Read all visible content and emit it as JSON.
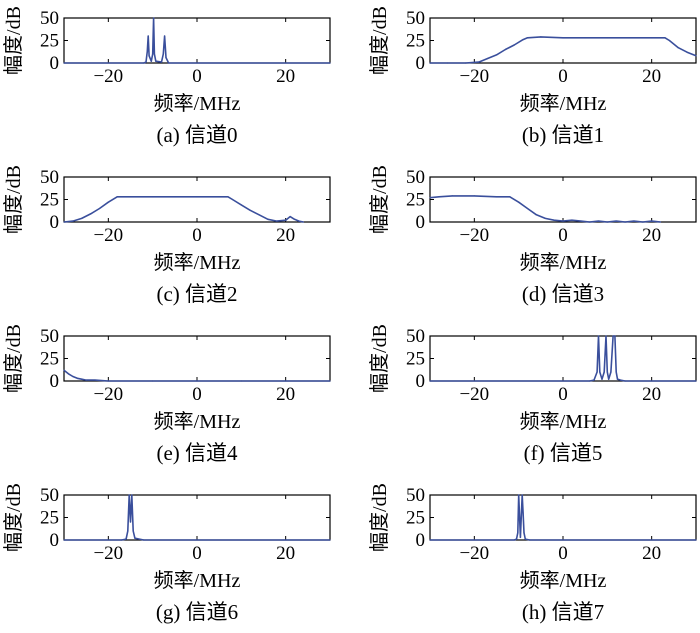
{
  "colors": {
    "line": "#3a4f9c",
    "axis": "#000000"
  },
  "chart_data": [
    {
      "caption": "(a) 信道0",
      "type": "line",
      "xlabel": "频率/MHz",
      "ylabel": "幅度/dB",
      "xlim": [
        -30,
        30
      ],
      "ylim": [
        0,
        50
      ],
      "xticks": [
        -20,
        0,
        20
      ],
      "yticks": [
        0,
        25,
        50
      ],
      "x": [
        -30,
        -12,
        -11.5,
        -11.2,
        -11,
        -10.8,
        -10.3,
        -10,
        -9.8,
        -9.6,
        -9.3,
        -8,
        -7.6,
        -7.3,
        -7,
        -6.4,
        30
      ],
      "y": [
        0,
        0,
        1,
        13,
        30,
        8,
        2,
        10,
        50,
        10,
        2,
        1,
        10,
        30,
        6,
        0,
        0
      ]
    },
    {
      "caption": "(b) 信道1",
      "type": "line",
      "xlabel": "频率/MHz",
      "ylabel": "幅度/dB",
      "xlim": [
        -30,
        30
      ],
      "ylim": [
        0,
        50
      ],
      "xticks": [
        -20,
        0,
        20
      ],
      "yticks": [
        0,
        25,
        50
      ],
      "x": [
        -30,
        -26,
        -22,
        -19,
        -17,
        -15,
        -13,
        -11,
        -9,
        -8,
        -5,
        0,
        5,
        10,
        15,
        20,
        23,
        24,
        26,
        28,
        30
      ],
      "y": [
        0,
        0,
        0,
        1,
        5,
        9,
        15,
        20,
        26,
        28,
        29,
        28,
        28,
        28,
        28,
        28,
        28,
        25,
        17,
        12,
        8
      ]
    },
    {
      "caption": "(c) 信道2",
      "type": "line",
      "xlabel": "频率/MHz",
      "ylabel": "幅度/dB",
      "xlim": [
        -30,
        30
      ],
      "ylim": [
        0,
        50
      ],
      "xticks": [
        -20,
        0,
        20
      ],
      "yticks": [
        0,
        25,
        50
      ],
      "x": [
        -30,
        -28,
        -26,
        -24,
        -22,
        -20,
        -18,
        -15,
        -10,
        -5,
        0,
        5,
        7,
        8,
        10,
        12,
        14,
        16,
        18,
        20,
        21,
        22,
        23,
        24
      ],
      "y": [
        0,
        1,
        4,
        9,
        15,
        22,
        28,
        28,
        28,
        28,
        28,
        28,
        28,
        25,
        19,
        13,
        8,
        3,
        1,
        2,
        6,
        3,
        1,
        0
      ]
    },
    {
      "caption": "(d) 信道3",
      "type": "line",
      "xlabel": "频率/MHz",
      "ylabel": "幅度/dB",
      "xlim": [
        -30,
        30
      ],
      "ylim": [
        0,
        50
      ],
      "xticks": [
        -20,
        0,
        20
      ],
      "yticks": [
        0,
        25,
        50
      ],
      "x": [
        -30,
        -28,
        -25,
        -20,
        -15,
        -12,
        -10,
        -8,
        -6,
        -4,
        -2,
        0,
        2,
        4,
        6,
        8,
        10,
        12,
        14,
        16,
        18,
        20,
        22
      ],
      "y": [
        27,
        28,
        29,
        29,
        28,
        28,
        22,
        15,
        8,
        4,
        2,
        1,
        2,
        1,
        0,
        1,
        0,
        1,
        0,
        1,
        0,
        1,
        0
      ]
    },
    {
      "caption": "(e) 信道4",
      "type": "line",
      "xlabel": "频率/MHz",
      "ylabel": "幅度/dB",
      "xlim": [
        -30,
        30
      ],
      "ylim": [
        0,
        50
      ],
      "xticks": [
        -20,
        0,
        20
      ],
      "yticks": [
        0,
        25,
        50
      ],
      "x": [
        -30,
        -29,
        -28,
        -27,
        -26,
        -25,
        -23,
        -20,
        -10,
        0,
        10,
        20,
        30
      ],
      "y": [
        12,
        8,
        5,
        3,
        2,
        1,
        1,
        0,
        0,
        0,
        0,
        0,
        0
      ]
    },
    {
      "caption": "(f) 信道5",
      "type": "line",
      "xlabel": "频率/MHz",
      "ylabel": "幅度/dB",
      "xlim": [
        -30,
        30
      ],
      "ylim": [
        0,
        50
      ],
      "xticks": [
        -20,
        0,
        20
      ],
      "yticks": [
        0,
        25,
        50
      ],
      "x": [
        -30,
        6,
        7,
        7.7,
        8,
        8.3,
        8.8,
        9.3,
        9.7,
        10,
        10.3,
        10.8,
        11.3,
        11.7,
        12,
        12.3,
        13,
        14,
        30
      ],
      "y": [
        0,
        0,
        1,
        10,
        50,
        10,
        2,
        10,
        50,
        10,
        2,
        10,
        50,
        50,
        10,
        2,
        1,
        0,
        0
      ]
    },
    {
      "caption": "(g) 信道6",
      "type": "line",
      "xlabel": "频率/MHz",
      "ylabel": "幅度/dB",
      "xlim": [
        -30,
        30
      ],
      "ylim": [
        0,
        50
      ],
      "xticks": [
        -20,
        0,
        20
      ],
      "yticks": [
        0,
        25,
        50
      ],
      "x": [
        -30,
        -17,
        -16,
        -15.6,
        -15.3,
        -15,
        -14.7,
        -14.4,
        -14,
        -13,
        -12,
        30
      ],
      "y": [
        0,
        0,
        1,
        10,
        50,
        20,
        50,
        10,
        2,
        1,
        0,
        0
      ]
    },
    {
      "caption": "(h) 信道7",
      "type": "line",
      "xlabel": "频率/MHz",
      "ylabel": "幅度/dB",
      "xlim": [
        -30,
        30
      ],
      "ylim": [
        0,
        50
      ],
      "xticks": [
        -20,
        0,
        20
      ],
      "yticks": [
        0,
        25,
        50
      ],
      "x": [
        -30,
        -11,
        -10.5,
        -10.2,
        -10,
        -9.6,
        -9.2,
        -9,
        -8.8,
        -8.5,
        -7.5,
        30
      ],
      "y": [
        0,
        0,
        1,
        8,
        50,
        3,
        50,
        30,
        8,
        1,
        0,
        0
      ]
    }
  ]
}
